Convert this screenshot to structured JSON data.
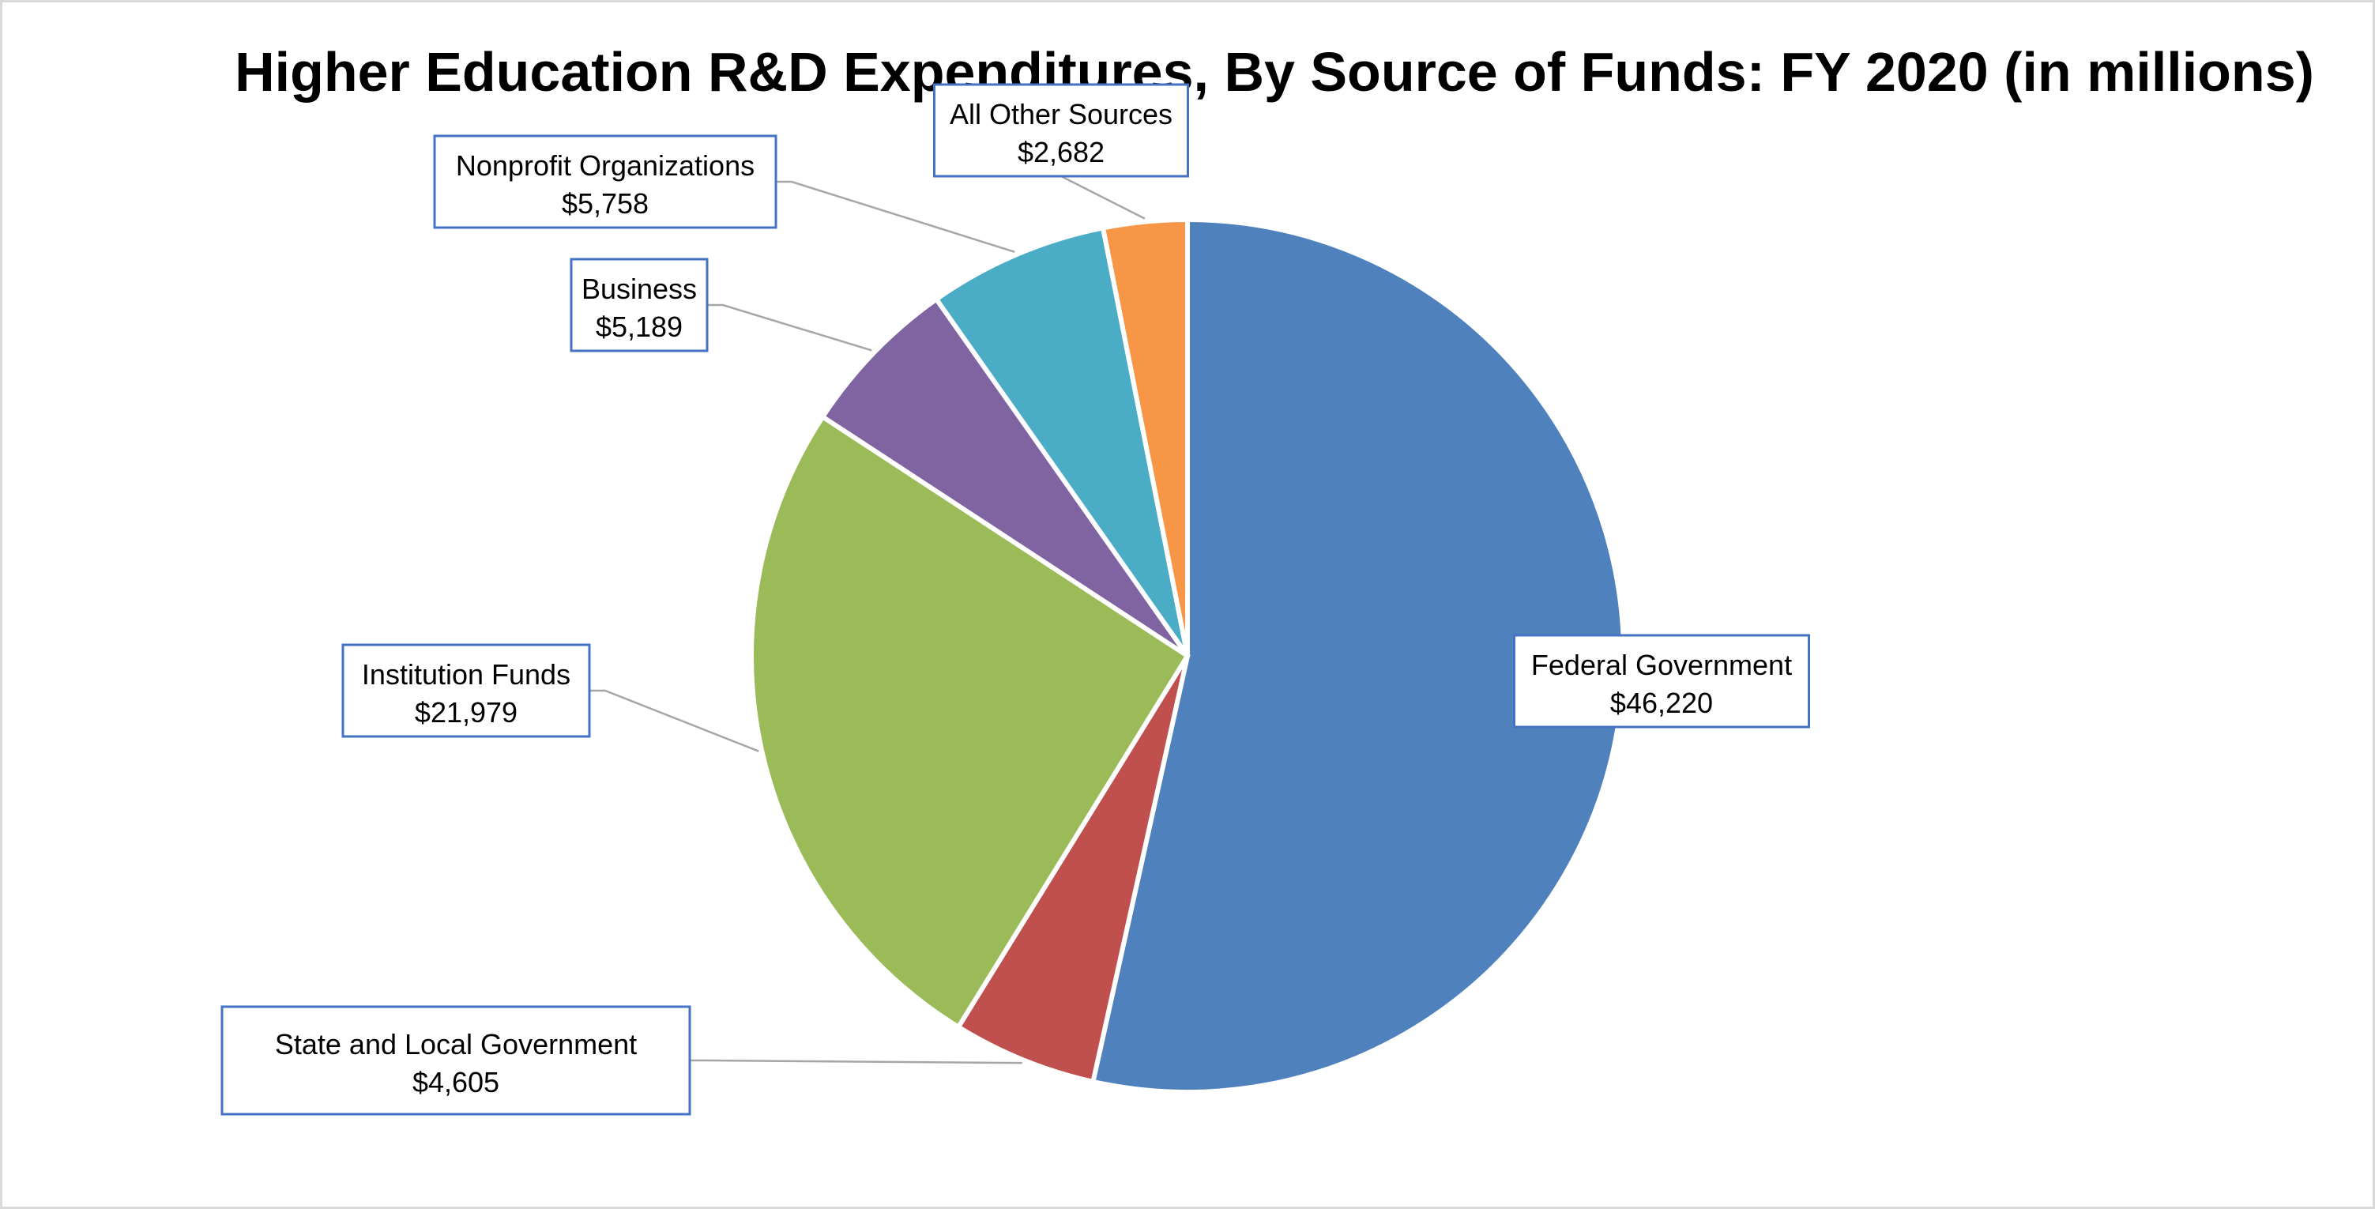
{
  "chart_data": {
    "type": "pie",
    "title": "Higher Education R&D Expenditures, By Source of Funds: FY 2020 (in millions)",
    "slices": [
      {
        "name": "Federal Government",
        "value": 46220,
        "value_label": "$46,220",
        "color": "#4f81bd"
      },
      {
        "name": "State and Local Government",
        "value": 4605,
        "value_label": "$4,605",
        "color": "#c0504d"
      },
      {
        "name": "Institution Funds",
        "value": 21979,
        "value_label": "$21,979",
        "color": "#9bbb59"
      },
      {
        "name": "Business",
        "value": 5189,
        "value_label": "$5,189",
        "color": "#8064a2"
      },
      {
        "name": "Nonprofit Organizations",
        "value": 5758,
        "value_label": "$5,758",
        "color": "#4bacc6"
      },
      {
        "name": "All Other Sources",
        "value": 2682,
        "value_label": "$2,682",
        "color": "#f79646"
      }
    ],
    "start_angle": "12 o'clock",
    "direction": "clockwise",
    "legend": "none (data callout labels)"
  }
}
